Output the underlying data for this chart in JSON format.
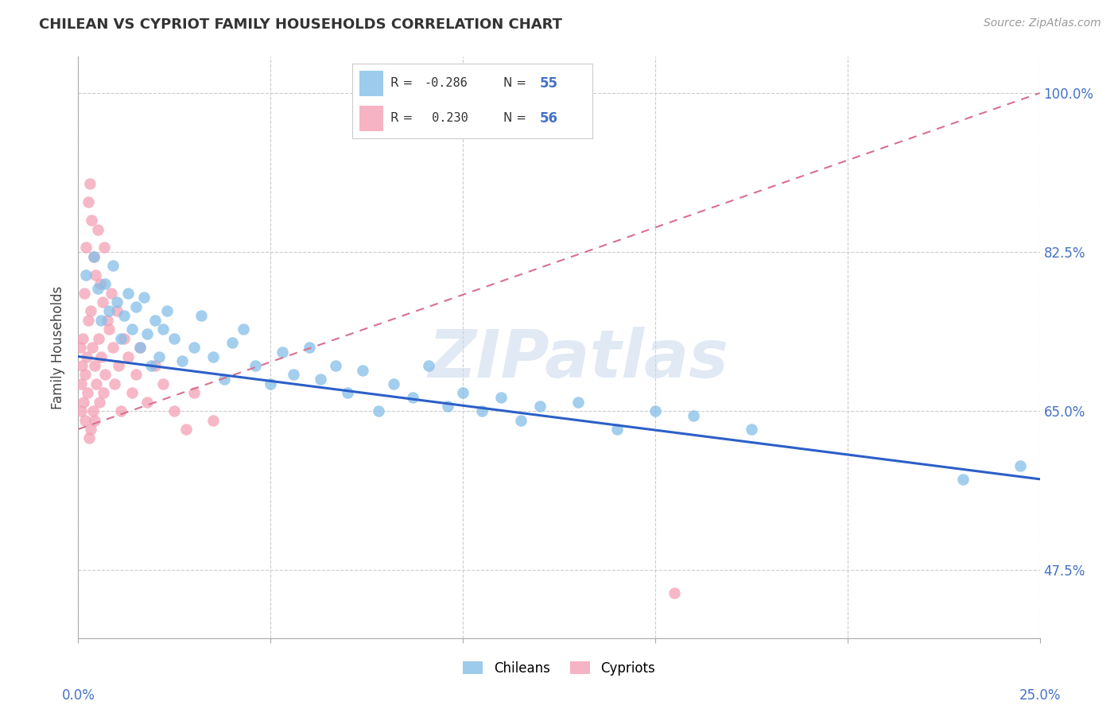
{
  "title": "CHILEAN VS CYPRIOT FAMILY HOUSEHOLDS CORRELATION CHART",
  "source": "Source: ZipAtlas.com",
  "ylabel": "Family Households",
  "y_ticks": [
    47.5,
    65.0,
    82.5,
    100.0
  ],
  "y_tick_labels": [
    "47.5%",
    "65.0%",
    "82.5%",
    "100.0%"
  ],
  "x_range": [
    0.0,
    25.0
  ],
  "y_range": [
    40.0,
    104.0
  ],
  "chilean_R": -0.286,
  "chilean_N": 55,
  "cypriot_R": 0.23,
  "cypriot_N": 56,
  "chilean_color": "#85BEE8",
  "cypriot_color": "#F4A0B5",
  "chilean_line_color": "#2B5FC8",
  "cypriot_line_color": "#D87090",
  "watermark": "ZIPatlas",
  "chilean_x": [
    0.2,
    0.4,
    0.5,
    0.6,
    0.7,
    0.8,
    0.9,
    1.0,
    1.1,
    1.2,
    1.3,
    1.4,
    1.5,
    1.6,
    1.7,
    1.8,
    1.9,
    2.0,
    2.1,
    2.2,
    2.3,
    2.5,
    2.7,
    3.0,
    3.2,
    3.5,
    3.8,
    4.0,
    4.3,
    4.6,
    5.0,
    5.3,
    5.6,
    6.0,
    6.3,
    6.7,
    7.0,
    7.4,
    7.8,
    8.2,
    8.7,
    9.1,
    9.6,
    10.0,
    10.5,
    11.0,
    11.5,
    12.0,
    13.0,
    14.0,
    15.0,
    16.0,
    17.5,
    23.0,
    24.5
  ],
  "chilean_y": [
    80.0,
    82.0,
    78.5,
    75.0,
    79.0,
    76.0,
    81.0,
    77.0,
    73.0,
    75.5,
    78.0,
    74.0,
    76.5,
    72.0,
    77.5,
    73.5,
    70.0,
    75.0,
    71.0,
    74.0,
    76.0,
    73.0,
    70.5,
    72.0,
    75.5,
    71.0,
    68.5,
    72.5,
    74.0,
    70.0,
    68.0,
    71.5,
    69.0,
    72.0,
    68.5,
    70.0,
    67.0,
    69.5,
    65.0,
    68.0,
    66.5,
    70.0,
    65.5,
    67.0,
    65.0,
    66.5,
    64.0,
    65.5,
    66.0,
    63.0,
    65.0,
    64.5,
    63.0,
    57.5,
    59.0
  ],
  "cypriot_x": [
    0.05,
    0.07,
    0.08,
    0.1,
    0.12,
    0.13,
    0.15,
    0.17,
    0.18,
    0.2,
    0.22,
    0.23,
    0.25,
    0.27,
    0.28,
    0.3,
    0.32,
    0.33,
    0.35,
    0.37,
    0.38,
    0.4,
    0.42,
    0.43,
    0.45,
    0.47,
    0.5,
    0.53,
    0.55,
    0.58,
    0.6,
    0.63,
    0.65,
    0.68,
    0.7,
    0.75,
    0.8,
    0.85,
    0.9,
    0.95,
    1.0,
    1.05,
    1.1,
    1.2,
    1.3,
    1.4,
    1.5,
    1.6,
    1.8,
    2.0,
    2.2,
    2.5,
    2.8,
    3.0,
    3.5,
    15.5
  ],
  "cypriot_y": [
    72.0,
    68.0,
    65.0,
    70.0,
    73.0,
    66.0,
    78.0,
    64.0,
    69.0,
    83.0,
    71.0,
    67.0,
    88.0,
    75.0,
    62.0,
    90.0,
    76.0,
    63.0,
    86.0,
    72.0,
    65.0,
    82.0,
    70.0,
    64.0,
    80.0,
    68.0,
    85.0,
    73.0,
    66.0,
    79.0,
    71.0,
    77.0,
    67.0,
    83.0,
    69.0,
    75.0,
    74.0,
    78.0,
    72.0,
    68.0,
    76.0,
    70.0,
    65.0,
    73.0,
    71.0,
    67.0,
    69.0,
    72.0,
    66.0,
    70.0,
    68.0,
    65.0,
    63.0,
    67.0,
    64.0,
    45.0
  ],
  "chilean_line_x": [
    0.0,
    25.0
  ],
  "chilean_line_y": [
    71.0,
    57.5
  ],
  "cypriot_line_x": [
    0.0,
    25.0
  ],
  "cypriot_line_y": [
    63.0,
    100.0
  ]
}
